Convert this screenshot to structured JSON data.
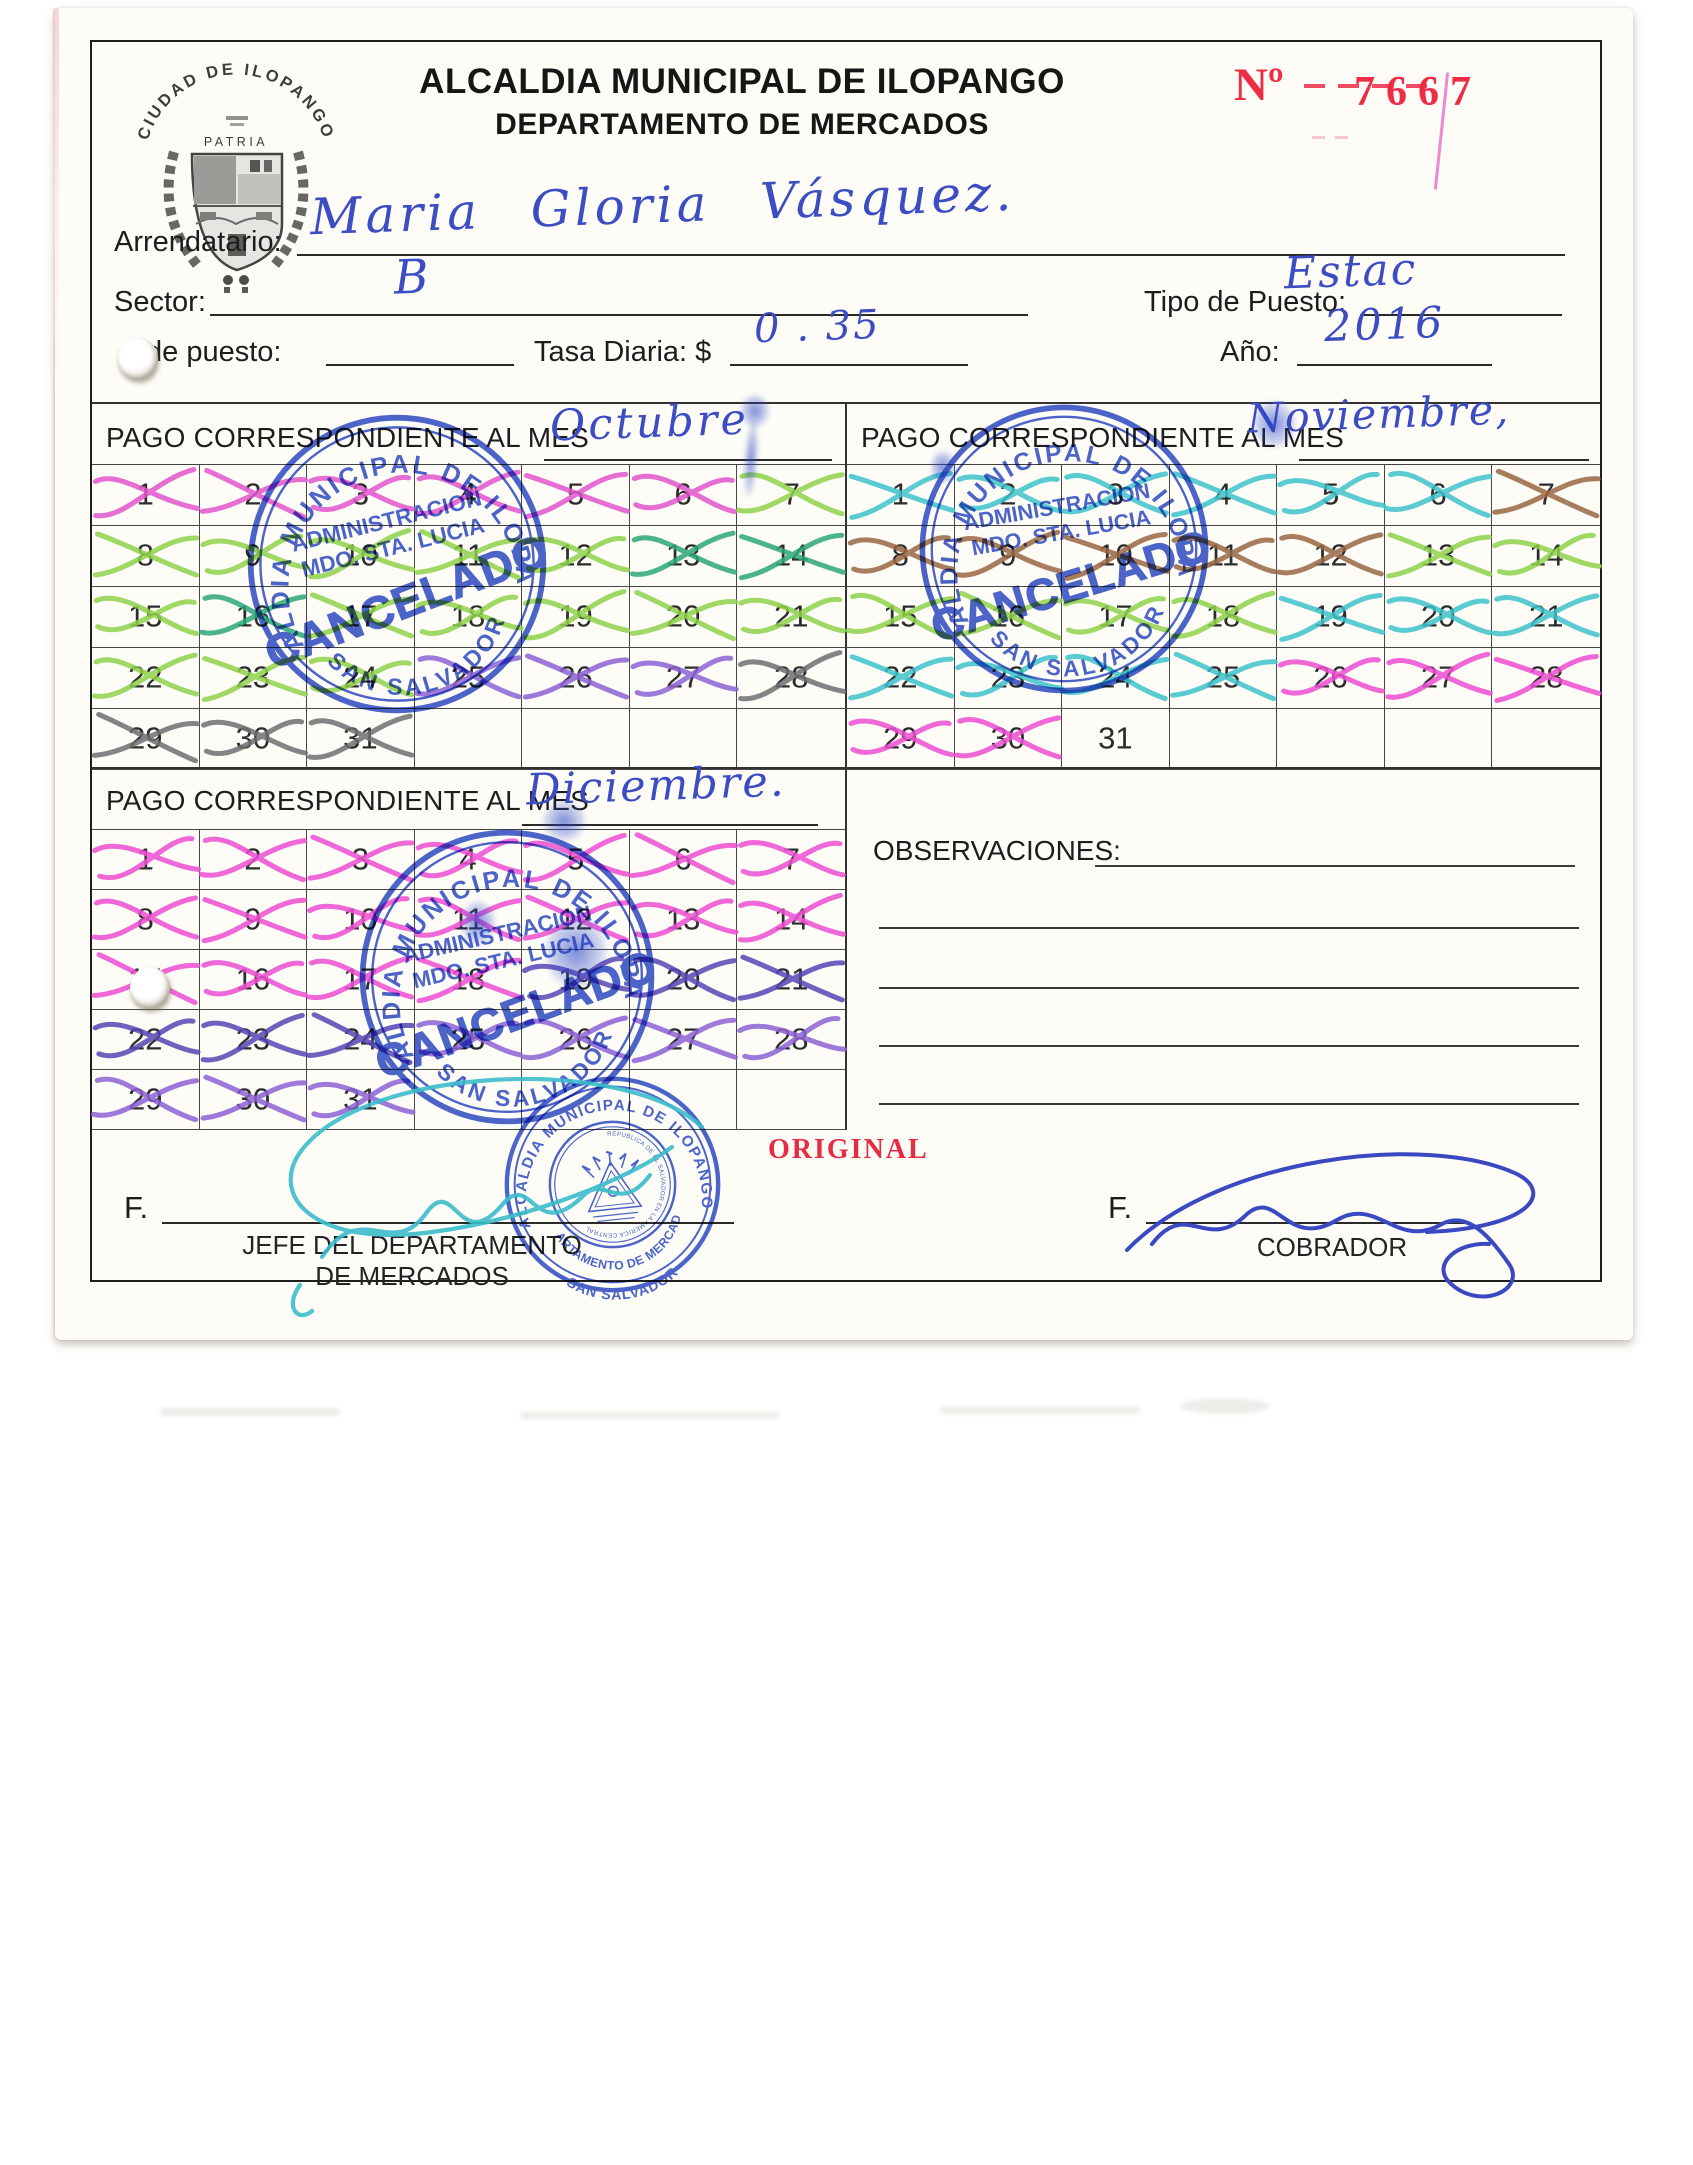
{
  "document": {
    "number_label": "Nº",
    "number_value": "7667",
    "copy_label": "ORIGINAL"
  },
  "header": {
    "title_line1": "ALCALDIA MUNICIPAL DE ILOPANGO",
    "title_line2": "DEPARTAMENTO DE MERCADOS",
    "logo": {
      "arc_text": "CIUDAD DE ILOPANGO",
      "motto": "PATRIA"
    }
  },
  "fields": {
    "arrendatario_label": "Arrendatario:",
    "arrendatario_value": "Maria Gloria Vásquez.",
    "sector_label": "Sector:",
    "sector_value": "B",
    "tipo_label": "Tipo de Puesto:",
    "tipo_value": "Estac",
    "puesto_label": "de puesto:",
    "tasa_label": "Tasa Diaria: $",
    "tasa_value": "0 . 35",
    "anio_label": "Año:",
    "anio_value": "2016"
  },
  "calendar_header_label": "PAGO CORRESPONDIENTE AL MES",
  "calendars": [
    {
      "month_value": "Octubre",
      "marks": [
        "mg",
        "mg",
        "mg",
        "mg",
        "mg",
        "mg",
        "lg",
        "lg",
        "lg",
        "lg",
        "lg",
        "lg",
        "tg",
        "tg",
        "lg",
        "tg",
        "lg",
        "lg",
        "lg",
        "lg",
        "lg",
        "lg",
        "lg",
        "lg",
        "pu",
        "pu",
        "pu",
        "gy",
        "gy",
        "gy",
        "gy"
      ]
    },
    {
      "month_value": "Noviembre,",
      "marks": [
        "cy",
        "cy",
        "cy",
        "cy",
        "cy",
        "cy",
        "br",
        "br",
        "br",
        "br",
        "br",
        "br",
        "lg",
        "lg",
        "lg",
        "lg",
        "lg",
        "lg",
        "cy",
        "cy",
        "cy",
        "cy",
        "cy",
        "cy",
        "cy",
        "pk",
        "pk",
        "pk",
        "pk",
        "pk",
        null
      ]
    },
    {
      "month_value": "Diciembre.",
      "marks": [
        "pk",
        "pk",
        "pk",
        "pk",
        "pk",
        "pk",
        "pk",
        "pk",
        "pk",
        "pk",
        "pk",
        "pk",
        "pk",
        "pk",
        "pk",
        "pk",
        "pk",
        "pk",
        "vi",
        "vi",
        "vi",
        "vi",
        "vi",
        "vi",
        "pu",
        "pu",
        "pu",
        "pu",
        "pu",
        "pu",
        "pu"
      ]
    }
  ],
  "mark_palette": {
    "mg": "#e256cc",
    "lg": "#8fd24b",
    "tg": "#2ca878",
    "pu": "#8d63d6",
    "gy": "#6f6f72",
    "cy": "#3fc3cc",
    "br": "#9a6743",
    "pk": "#ee4fd2",
    "vi": "#5946b6"
  },
  "stamp_cancel": {
    "arc_top": "ALCALDIA MUNICIPAL DE ILOPANGO",
    "line1": "ADMINISTRACION",
    "line2": "MDO. STA. LUCIA",
    "line3": "CANCELADO",
    "arc_bottom": "SAN SALVADOR"
  },
  "observations": {
    "label": "OBSERVACIONES:"
  },
  "footer": {
    "sign_prefix": "F.",
    "left_role_line1": "JEFE DEL DEPARTAMENTO",
    "left_role_line2": "DE MERCADOS",
    "right_role": "COBRADOR",
    "stamp": {
      "arc_top": "ALCALDIA MUNICIPAL DE ILOPANGO",
      "arc_mid": "DEPARTAMENTO DE MERCADOS",
      "arc_bottom": "- SAN SALVADOR -",
      "emblem_text": "REPUBLICA DE EL SALVADOR EN LA AMERICA CENTRAL"
    }
  }
}
